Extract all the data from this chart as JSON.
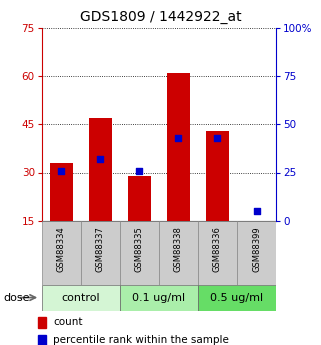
{
  "title": "GDS1809 / 1442922_at",
  "samples": [
    "GSM88334",
    "GSM88337",
    "GSM88335",
    "GSM88338",
    "GSM88336",
    "GSM88399"
  ],
  "count_values": [
    33,
    47,
    29,
    61,
    43,
    15
  ],
  "percentile_values": [
    26,
    32,
    26,
    43,
    43,
    5
  ],
  "ylim_left": [
    15,
    75
  ],
  "ylim_right": [
    0,
    100
  ],
  "yticks_left": [
    15,
    30,
    45,
    60,
    75
  ],
  "yticks_right": [
    0,
    25,
    50,
    75,
    100
  ],
  "bar_color": "#cc0000",
  "dot_color": "#0000cc",
  "bar_bottom": 15,
  "groups": [
    {
      "label": "control",
      "start": 0,
      "end": 2,
      "color": "#d4f5d4"
    },
    {
      "label": "0.1 ug/ml",
      "start": 2,
      "end": 4,
      "color": "#aaeeaa"
    },
    {
      "label": "0.5 ug/ml",
      "start": 4,
      "end": 6,
      "color": "#66dd66"
    }
  ],
  "dose_label": "dose",
  "legend_count": "count",
  "legend_pct": "percentile rank within the sample",
  "left_tick_color": "#cc0000",
  "right_tick_color": "#0000cc",
  "title_fontsize": 10,
  "tick_fontsize": 7.5,
  "sample_bg_color": "#cccccc",
  "sample_label_fontsize": 6,
  "group_label_fontsize": 8,
  "legend_fontsize": 7.5,
  "dose_fontsize": 8
}
